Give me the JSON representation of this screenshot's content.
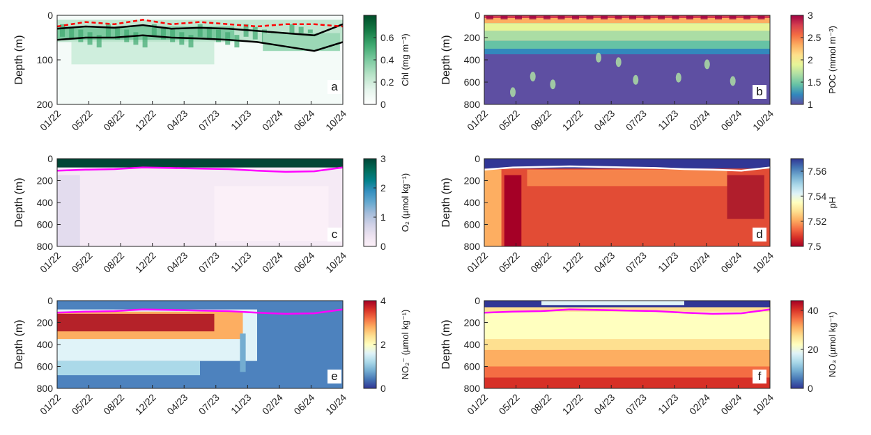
{
  "figure": {
    "colors": {
      "axis": "#222222",
      "mld_line": "#ff00ff",
      "chl_black": "#000000",
      "chl_red": "#ff0000"
    }
  },
  "chart_data": [
    {
      "id": "a",
      "type": "heatmap",
      "panel_label": "a",
      "variable": "Chl",
      "colorbar_label": "Chl (mg m⁻³)",
      "colormap": "greens",
      "colorbar_ticks": [
        "0",
        "0.2",
        "0.4",
        "0.6"
      ],
      "crange": [
        0,
        0.8
      ],
      "ylabel": "Depth (m)",
      "ylim": [
        0,
        200
      ],
      "y_ticks": [
        "0",
        "100",
        "200"
      ],
      "x_ticks": [
        "01/22",
        "05/22",
        "08/22",
        "12/22",
        "04/23",
        "07/23",
        "11/23",
        "02/24",
        "06/24",
        "10/24"
      ],
      "overlays": [
        {
          "name": "black_upper",
          "color": "#000000",
          "dashed": false,
          "x": [
            0,
            0.1,
            0.2,
            0.3,
            0.4,
            0.5,
            0.6,
            0.7,
            0.8,
            0.9,
            1.0
          ],
          "depth": [
            30,
            25,
            28,
            22,
            30,
            28,
            30,
            35,
            40,
            45,
            20
          ]
        },
        {
          "name": "black_lower",
          "color": "#000000",
          "dashed": false,
          "x": [
            0,
            0.1,
            0.2,
            0.3,
            0.4,
            0.5,
            0.6,
            0.7,
            0.8,
            0.9,
            1.0
          ],
          "depth": [
            55,
            50,
            50,
            45,
            50,
            52,
            55,
            60,
            70,
            80,
            60
          ]
        },
        {
          "name": "red_dashed",
          "color": "#ff0000",
          "dashed": true,
          "x": [
            0,
            0.1,
            0.2,
            0.3,
            0.4,
            0.5,
            0.6,
            0.7,
            0.8,
            0.9,
            1.0
          ],
          "depth": [
            25,
            15,
            20,
            10,
            20,
            15,
            20,
            25,
            20,
            20,
            25
          ]
        }
      ]
    },
    {
      "id": "b",
      "type": "heatmap",
      "panel_label": "b",
      "variable": "POC",
      "colorbar_label": "POC (mmol m⁻³)",
      "colormap": "spectral",
      "colorbar_ticks": [
        "1",
        "1.5",
        "2",
        "2.5",
        "3"
      ],
      "crange": [
        1,
        3
      ],
      "ylabel": "Depth (m)",
      "ylim": [
        0,
        800
      ],
      "y_ticks": [
        "0",
        "200",
        "400",
        "600",
        "800"
      ],
      "x_ticks": [
        "01/22",
        "05/22",
        "08/22",
        "12/22",
        "04/23",
        "07/23",
        "11/23",
        "02/24",
        "06/24",
        "10/24"
      ],
      "overlays": []
    },
    {
      "id": "c",
      "type": "heatmap",
      "panel_label": "c",
      "variable": "O2",
      "colorbar_label": "O₂ (µmol kg⁻¹)",
      "colormap": "pubugn",
      "colorbar_ticks": [
        "0",
        "1",
        "2",
        "3"
      ],
      "crange": [
        0,
        3
      ],
      "ylabel": "Depth (m)",
      "ylim": [
        0,
        800
      ],
      "y_ticks": [
        "0",
        "200",
        "400",
        "600",
        "800"
      ],
      "x_ticks": [
        "01/22",
        "05/22",
        "08/22",
        "12/22",
        "04/23",
        "07/23",
        "11/23",
        "02/24",
        "06/24",
        "10/24"
      ],
      "overlays": [
        {
          "name": "magenta_line",
          "color": "#ff00ff",
          "dashed": false,
          "x": [
            0,
            0.1,
            0.2,
            0.3,
            0.4,
            0.5,
            0.6,
            0.7,
            0.8,
            0.9,
            1.0
          ],
          "depth": [
            110,
            100,
            95,
            80,
            85,
            90,
            95,
            110,
            120,
            115,
            80
          ]
        }
      ]
    },
    {
      "id": "d",
      "type": "heatmap",
      "panel_label": "d",
      "variable": "pH",
      "colorbar_label": "pH",
      "colormap": "rdylbu",
      "colorbar_ticks": [
        "7.5",
        "7.52",
        "7.54",
        "7.56"
      ],
      "crange": [
        7.5,
        7.57
      ],
      "ylabel": "Depth (m)",
      "ylim": [
        0,
        800
      ],
      "y_ticks": [
        "0",
        "200",
        "400",
        "600",
        "800"
      ],
      "x_ticks": [
        "01/22",
        "05/22",
        "08/22",
        "12/22",
        "04/23",
        "07/23",
        "11/23",
        "02/24",
        "06/24",
        "10/24"
      ],
      "overlays": [
        {
          "name": "white_line",
          "color": "#ffffff",
          "dashed": false,
          "x": [
            0,
            0.1,
            0.2,
            0.3,
            0.4,
            0.5,
            0.6,
            0.7,
            0.8,
            0.9,
            1.0
          ],
          "depth": [
            100,
            80,
            75,
            70,
            75,
            80,
            85,
            95,
            100,
            110,
            80
          ]
        }
      ]
    },
    {
      "id": "e",
      "type": "heatmap",
      "panel_label": "e",
      "variable": "NO2-",
      "colorbar_label": "NO₂⁻ (µmol kg⁻¹)",
      "colormap": "rdylbu_r",
      "colorbar_ticks": [
        "0",
        "2",
        "4"
      ],
      "crange": [
        0,
        4
      ],
      "ylabel": "Depth (m)",
      "ylim": [
        0,
        800
      ],
      "y_ticks": [
        "0",
        "200",
        "400",
        "600",
        "800"
      ],
      "x_ticks": [
        "01/22",
        "05/22",
        "08/22",
        "12/22",
        "04/23",
        "07/23",
        "11/23",
        "02/24",
        "06/24",
        "10/24"
      ],
      "overlays": [
        {
          "name": "magenta_line",
          "color": "#ff00ff",
          "dashed": false,
          "x": [
            0,
            0.1,
            0.2,
            0.3,
            0.4,
            0.5,
            0.6,
            0.7,
            0.8,
            0.9,
            1.0
          ],
          "depth": [
            110,
            100,
            95,
            80,
            85,
            90,
            95,
            110,
            120,
            115,
            80
          ]
        }
      ]
    },
    {
      "id": "f",
      "type": "heatmap",
      "panel_label": "f",
      "variable": "NO3",
      "colorbar_label": "NO₃ (µmol kg⁻¹)",
      "colormap": "rdylbu_r",
      "colorbar_ticks": [
        "0",
        "20",
        "40"
      ],
      "crange": [
        0,
        45
      ],
      "ylabel": "Depth (m)",
      "ylim": [
        0,
        800
      ],
      "y_ticks": [
        "0",
        "200",
        "400",
        "600",
        "800"
      ],
      "x_ticks": [
        "01/22",
        "05/22",
        "08/22",
        "12/22",
        "04/23",
        "07/23",
        "11/23",
        "02/24",
        "06/24",
        "10/24"
      ],
      "overlays": [
        {
          "name": "magenta_line",
          "color": "#ff00ff",
          "dashed": false,
          "x": [
            0,
            0.1,
            0.2,
            0.3,
            0.4,
            0.5,
            0.6,
            0.7,
            0.8,
            0.9,
            1.0
          ],
          "depth": [
            110,
            100,
            95,
            80,
            85,
            90,
            95,
            110,
            120,
            115,
            80
          ]
        }
      ]
    }
  ]
}
